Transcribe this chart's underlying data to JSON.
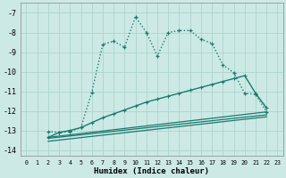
{
  "xlabel": "Humidex (Indice chaleur)",
  "background_color": "#cce9e5",
  "grid_color": "#aed4ce",
  "line_color": "#1a7a6e",
  "xlim": [
    -0.5,
    23.5
  ],
  "ylim": [
    -14.3,
    -6.5
  ],
  "yticks": [
    -14,
    -13,
    -12,
    -11,
    -10,
    -9,
    -8,
    -7
  ],
  "xticks": [
    0,
    1,
    2,
    3,
    4,
    5,
    6,
    7,
    8,
    9,
    10,
    11,
    12,
    13,
    14,
    15,
    16,
    17,
    18,
    19,
    20,
    21,
    22,
    23
  ],
  "dotted_x": [
    2,
    3,
    4,
    5,
    6,
    7,
    8,
    9,
    10,
    11,
    12,
    13,
    14,
    15,
    16,
    17,
    18,
    19,
    20,
    21,
    22
  ],
  "dotted_y": [
    -13.05,
    -13.1,
    -13.05,
    -12.85,
    -11.05,
    -8.6,
    -8.45,
    -8.75,
    -7.2,
    -8.0,
    -9.2,
    -8.0,
    -7.9,
    -7.9,
    -8.35,
    -8.55,
    -9.65,
    -10.05,
    -11.1,
    -11.15,
    -12.05
  ],
  "line1_x": [
    2,
    3,
    4,
    5,
    6,
    7,
    8,
    9,
    10,
    11,
    12,
    13,
    14,
    15,
    16,
    17,
    18,
    19,
    20,
    21,
    22
  ],
  "line1_y": [
    -13.35,
    -13.1,
    -13.0,
    -12.85,
    -12.6,
    -12.35,
    -12.15,
    -11.95,
    -11.75,
    -11.55,
    -11.4,
    -11.25,
    -11.1,
    -10.95,
    -10.8,
    -10.65,
    -10.5,
    -10.35,
    -10.2,
    -11.1,
    -11.85
  ],
  "line2_x": [
    2,
    22
  ],
  "line2_y": [
    -13.35,
    -12.05
  ],
  "line3_x": [
    2,
    22
  ],
  "line3_y": [
    -13.4,
    -12.2
  ],
  "line4_x": [
    2,
    22
  ],
  "line4_y": [
    -13.55,
    -12.3
  ]
}
